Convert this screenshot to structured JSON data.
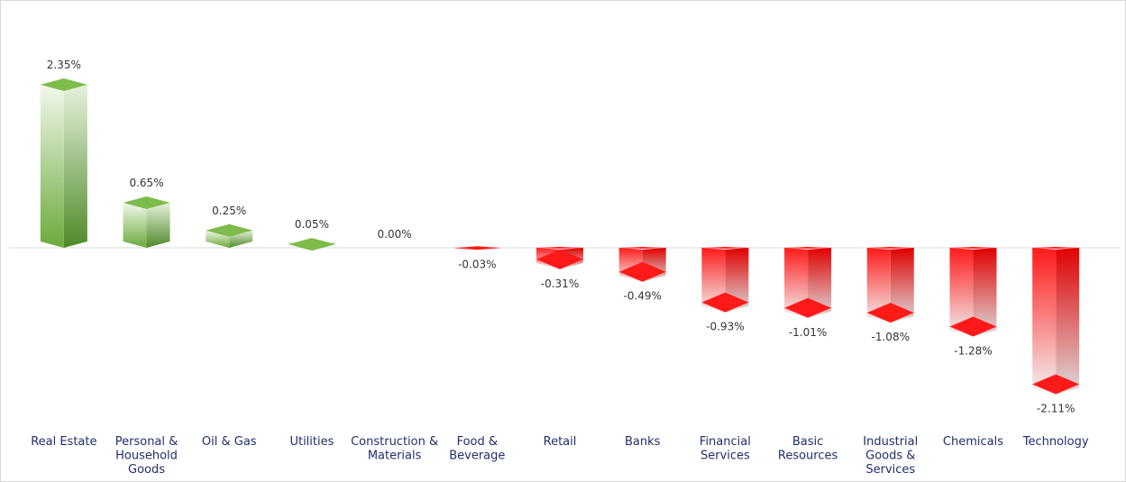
{
  "chart_data": {
    "type": "bar",
    "title": "",
    "xlabel": "",
    "ylabel": "",
    "categories": [
      "Real Estate",
      "Personal & Household Goods",
      "Oil & Gas",
      "Utilities",
      "Construction & Materials",
      "Food & Beverage",
      "Retail",
      "Banks",
      "Financial Services",
      "Basic Resources",
      "Industrial Goods & Services",
      "Chemicals",
      "Technology"
    ],
    "category_lines": [
      [
        "Real Estate"
      ],
      [
        "Personal &",
        "Household",
        "Goods"
      ],
      [
        "Oil & Gas"
      ],
      [
        "Utilities"
      ],
      [
        "Construction &",
        "Materials"
      ],
      [
        "Food &",
        "Beverage"
      ],
      [
        "Retail"
      ],
      [
        "Banks"
      ],
      [
        "Financial",
        "Services"
      ],
      [
        "Basic",
        "Resources"
      ],
      [
        "Industrial",
        "Goods &",
        "Services"
      ],
      [
        "Chemicals"
      ],
      [
        "Technology"
      ]
    ],
    "values": [
      2.35,
      0.65,
      0.25,
      0.05,
      0.0,
      -0.03,
      -0.31,
      -0.49,
      -0.93,
      -1.01,
      -1.08,
      -1.28,
      -2.11
    ],
    "labels": [
      "2.35%",
      "0.65%",
      "0.25%",
      "0.05%",
      "0.00%",
      "-0.03%",
      "-0.31%",
      "-0.49%",
      "-0.93%",
      "-1.01%",
      "-1.08%",
      "-1.28%",
      "-2.11%"
    ],
    "ylim": [
      -2.4,
      2.8
    ],
    "grid": false,
    "legend": "none",
    "colors": {
      "positive": "#6aaa3a",
      "positive_light": "#f2f8ec",
      "negative": "#ff1a1a",
      "negative_light": "#f2f2f2",
      "axis": "#d9d9d9",
      "category_text": "#1f2f6b",
      "value_text": "#333333"
    }
  }
}
